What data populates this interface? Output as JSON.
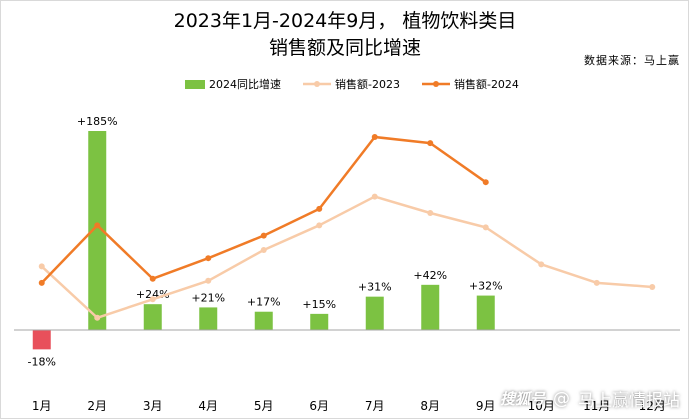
{
  "header": {
    "title_line1": "2023年1月-2024年9月， 植物饮料类目",
    "title_line2": "销售额及同比增速",
    "source": "数据来源：马上赢"
  },
  "watermark": {
    "logo": "搜狐号",
    "separator": "@",
    "text": "马上赢情报站"
  },
  "colors": {
    "bar_positive": "#7cc242",
    "bar_negative": "#e8505b",
    "line_2023": "#f8cba8",
    "line_2024": "#f07b27",
    "axis": "#a6a6a6"
  },
  "chart_data": {
    "type": "bar",
    "title": "2023年1月-2024年9月， 植物饮料类目 销售额及同比增速",
    "categories": [
      "1月",
      "2月",
      "3月",
      "4月",
      "5月",
      "6月",
      "7月",
      "8月",
      "9月",
      "10月",
      "11月",
      "12月"
    ],
    "series": [
      {
        "name": "2024同比增速",
        "type": "bar",
        "axis": "right",
        "unit": "%",
        "values": [
          -18,
          185,
          24,
          21,
          17,
          15,
          31,
          42,
          32,
          null,
          null,
          null
        ],
        "labels": [
          "-18%",
          "+185%",
          "+24%",
          "+21%",
          "+17%",
          "+15%",
          "+31%",
          "+42%",
          "+32%",
          null,
          null,
          null
        ]
      },
      {
        "name": "销售额-2023",
        "type": "line",
        "axis": "left",
        "values": [
          48,
          23,
          32,
          41,
          56,
          68,
          82,
          74,
          67,
          49,
          40,
          38
        ]
      },
      {
        "name": "销售额-2024",
        "type": "line",
        "axis": "left",
        "values": [
          40,
          68,
          42,
          52,
          63,
          76,
          111,
          108,
          89,
          null,
          null,
          null
        ]
      }
    ],
    "left_axis_ylim": [
      -40,
      130
    ],
    "right_axis_ylim": [
      -40,
      225
    ],
    "xlabel": "",
    "ylabel": "",
    "legend_position": "top",
    "grid": false
  }
}
